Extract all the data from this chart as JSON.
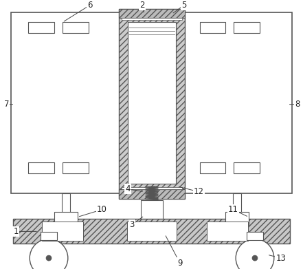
{
  "bg_color": "#ffffff",
  "line_color": "#555555",
  "fig_width": 4.41,
  "fig_height": 3.91,
  "dpi": 100
}
